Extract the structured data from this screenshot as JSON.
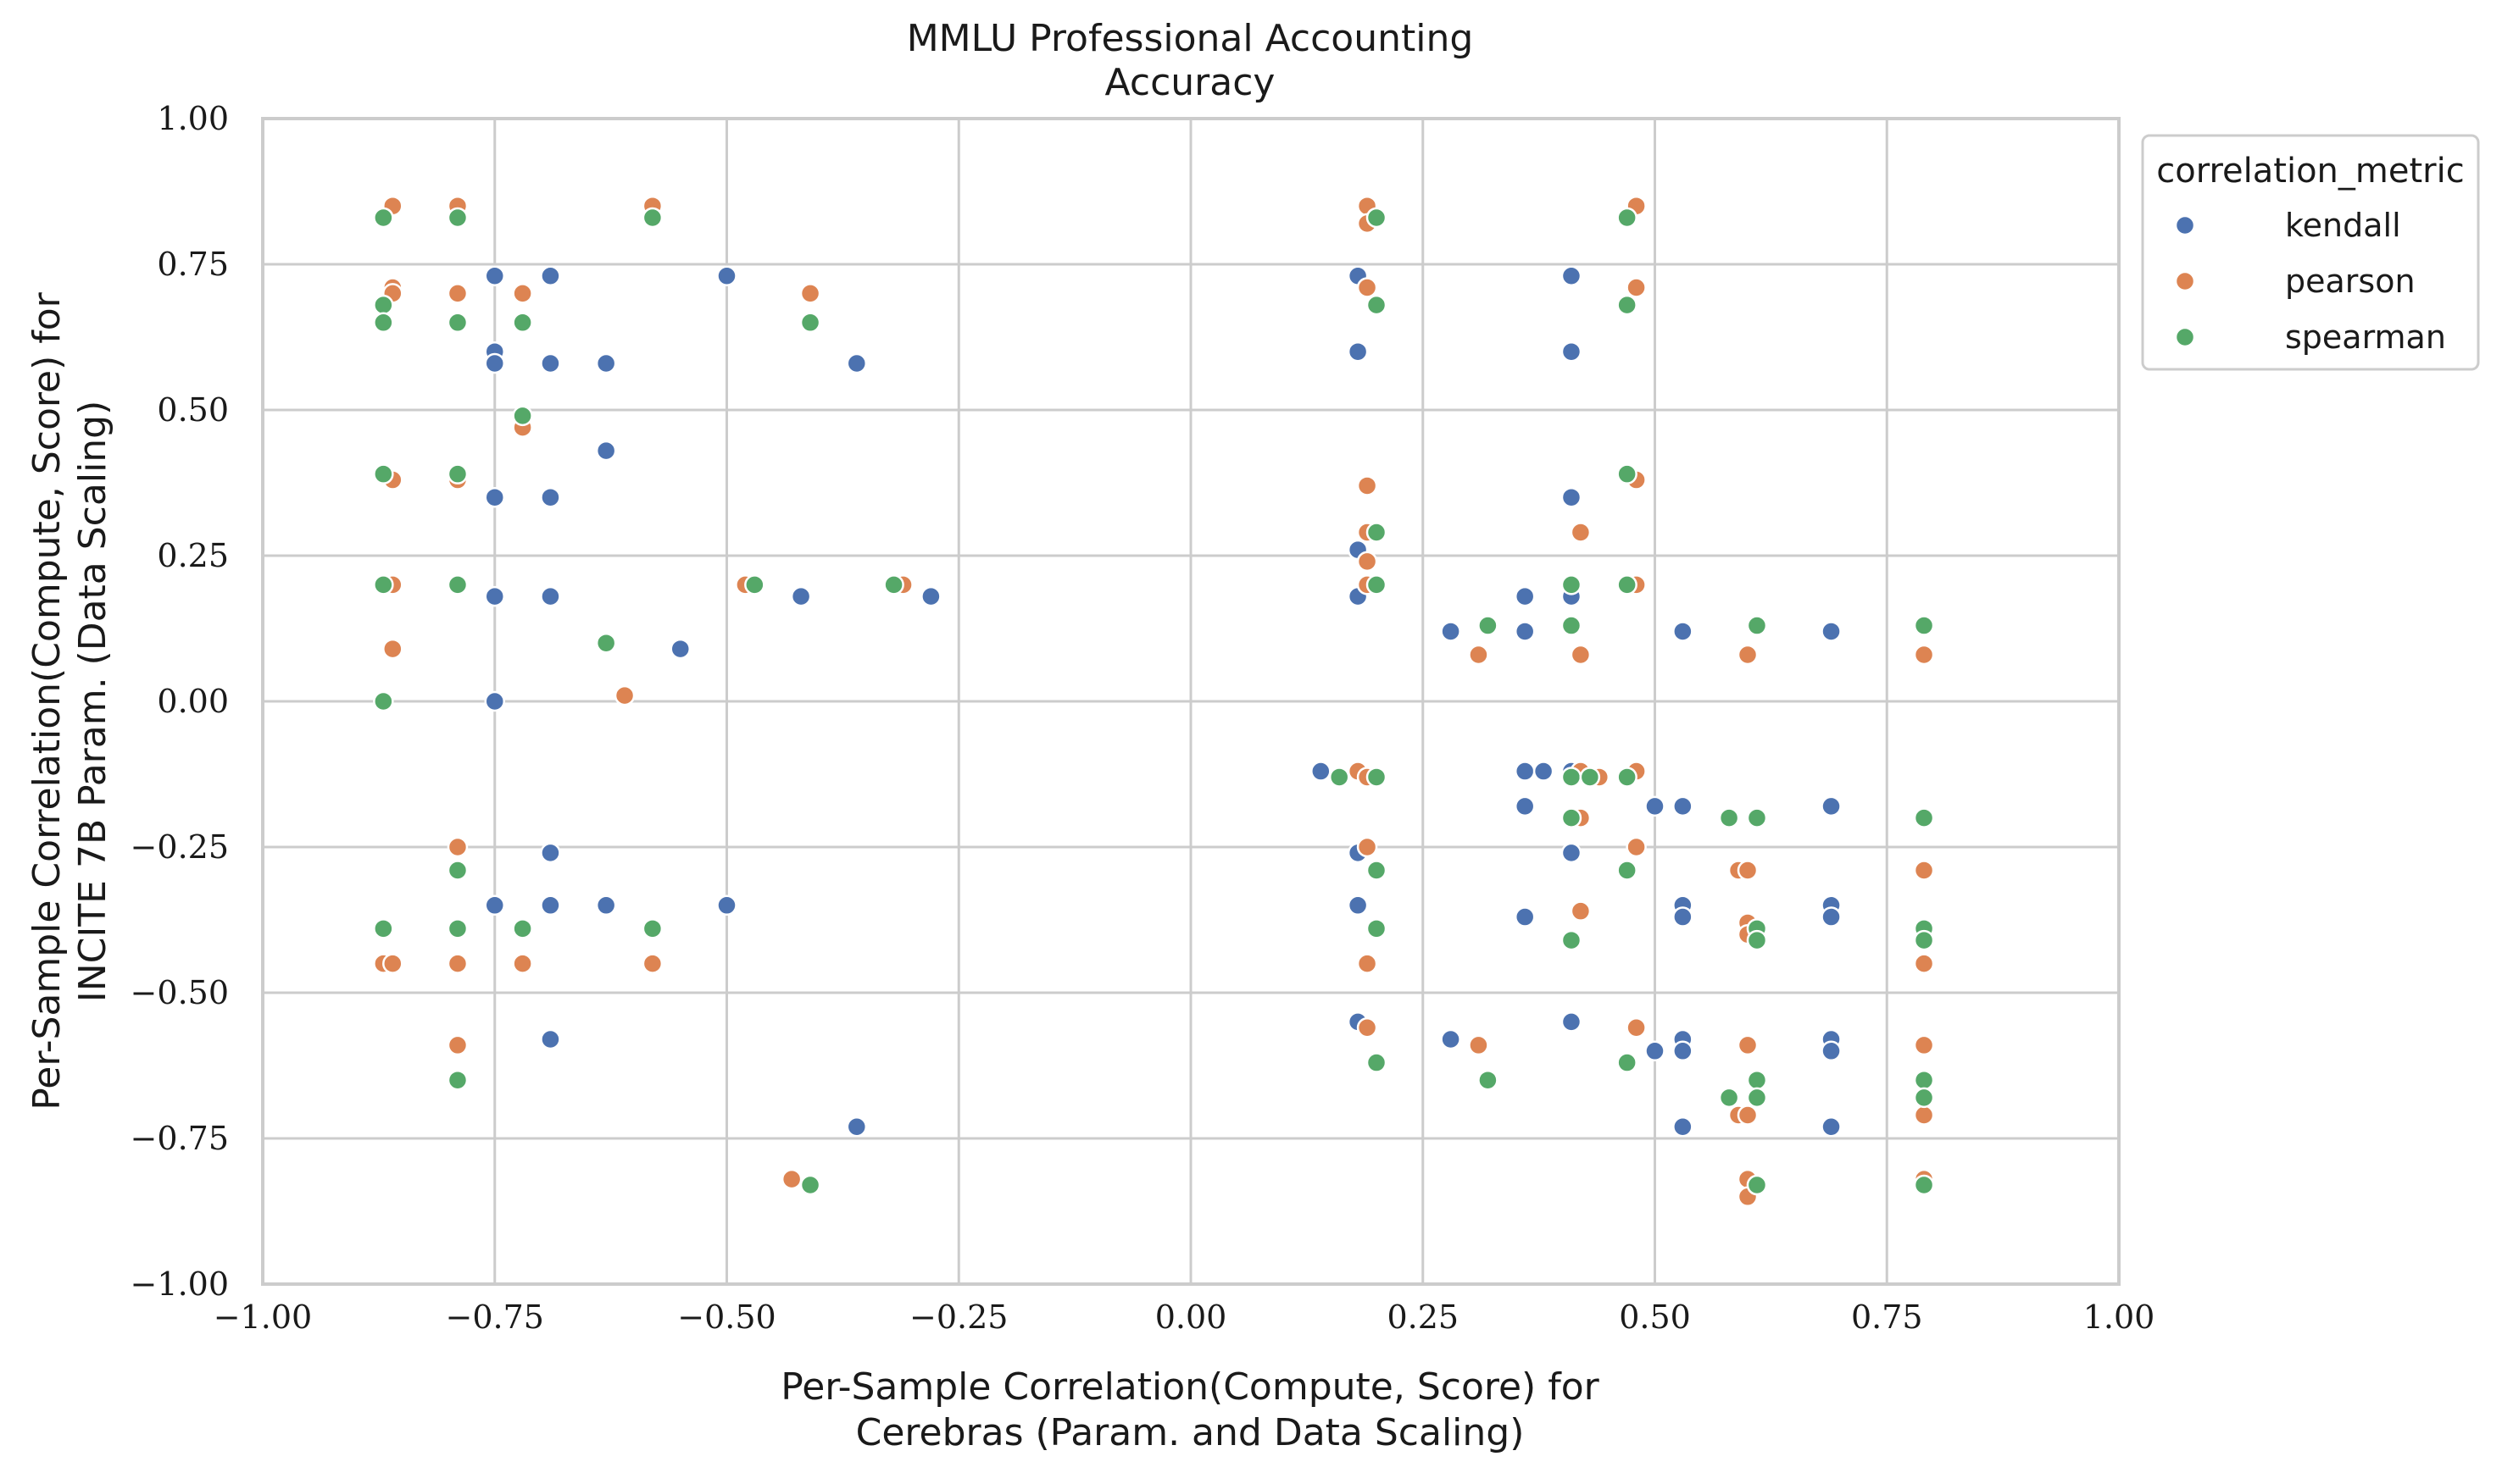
{
  "chart_data": {
    "type": "scatter",
    "title_lines": [
      "MMLU Professional Accounting",
      "Accuracy"
    ],
    "xlabel_lines": [
      "Per-Sample Correlation(Compute, Score) for",
      "Cerebras (Param. and Data Scaling)"
    ],
    "ylabel_lines": [
      "Per-Sample Correlation(Compute, Score) for",
      "INCITE 7B Param. (Data Scaling)"
    ],
    "xlim": [
      -1.0,
      1.0
    ],
    "ylim": [
      -1.0,
      1.0
    ],
    "xticks": [
      -1.0,
      -0.75,
      -0.5,
      -0.25,
      0.0,
      0.25,
      0.5,
      0.75,
      1.0
    ],
    "yticks": [
      -1.0,
      -0.75,
      -0.5,
      -0.25,
      0.0,
      0.25,
      0.5,
      0.75,
      1.0
    ],
    "xtick_labels": [
      "−1.00",
      "−0.75",
      "−0.50",
      "−0.25",
      "0.00",
      "0.25",
      "0.50",
      "0.75",
      "1.00"
    ],
    "ytick_labels": [
      "−1.00",
      "−0.75",
      "−0.50",
      "−0.25",
      "0.00",
      "0.25",
      "0.50",
      "0.75",
      "1.00"
    ],
    "grid": true,
    "legend": {
      "title": "correlation_metric",
      "position": "outside-top-right"
    },
    "series": [
      {
        "name": "kendall",
        "color": "#4c72b0",
        "points": [
          [
            -0.75,
            0.73
          ],
          [
            -0.69,
            0.73
          ],
          [
            -0.5,
            0.73
          ],
          [
            -0.75,
            0.6
          ],
          [
            -0.75,
            0.58
          ],
          [
            -0.69,
            0.58
          ],
          [
            -0.63,
            0.58
          ],
          [
            -0.36,
            0.58
          ],
          [
            -0.63,
            0.43
          ],
          [
            -0.75,
            0.35
          ],
          [
            -0.69,
            0.35
          ],
          [
            -0.75,
            0.18
          ],
          [
            -0.69,
            0.18
          ],
          [
            -0.42,
            0.18
          ],
          [
            -0.28,
            0.18
          ],
          [
            -0.55,
            0.09
          ],
          [
            -0.75,
            0.0
          ],
          [
            -0.69,
            -0.26
          ],
          [
            -0.75,
            -0.35
          ],
          [
            -0.69,
            -0.35
          ],
          [
            -0.63,
            -0.35
          ],
          [
            -0.5,
            -0.35
          ],
          [
            -0.69,
            -0.58
          ],
          [
            -0.36,
            -0.73
          ],
          [
            0.18,
            0.73
          ],
          [
            0.41,
            0.73
          ],
          [
            0.18,
            0.6
          ],
          [
            0.41,
            0.6
          ],
          [
            0.41,
            0.35
          ],
          [
            0.18,
            0.26
          ],
          [
            0.18,
            0.18
          ],
          [
            0.36,
            0.18
          ],
          [
            0.41,
            0.18
          ],
          [
            0.28,
            0.12
          ],
          [
            0.36,
            0.12
          ],
          [
            0.53,
            0.12
          ],
          [
            0.69,
            0.12
          ],
          [
            0.14,
            -0.12
          ],
          [
            0.18,
            -0.12
          ],
          [
            0.36,
            -0.12
          ],
          [
            0.38,
            -0.12
          ],
          [
            0.41,
            -0.12
          ],
          [
            0.36,
            -0.18
          ],
          [
            0.5,
            -0.18
          ],
          [
            0.53,
            -0.18
          ],
          [
            0.69,
            -0.18
          ],
          [
            0.18,
            -0.26
          ],
          [
            0.41,
            -0.26
          ],
          [
            0.18,
            -0.35
          ],
          [
            0.53,
            -0.35
          ],
          [
            0.69,
            -0.35
          ],
          [
            0.36,
            -0.37
          ],
          [
            0.53,
            -0.37
          ],
          [
            0.69,
            -0.37
          ],
          [
            0.18,
            -0.55
          ],
          [
            0.41,
            -0.55
          ],
          [
            0.28,
            -0.58
          ],
          [
            0.53,
            -0.58
          ],
          [
            0.69,
            -0.58
          ],
          [
            0.5,
            -0.6
          ],
          [
            0.53,
            -0.6
          ],
          [
            0.69,
            -0.6
          ],
          [
            0.53,
            -0.73
          ],
          [
            0.69,
            -0.73
          ]
        ]
      },
      {
        "name": "pearson",
        "color": "#dd8452",
        "points": [
          [
            -0.86,
            0.85
          ],
          [
            -0.79,
            0.85
          ],
          [
            -0.58,
            0.85
          ],
          [
            -0.86,
            0.71
          ],
          [
            -0.86,
            0.7
          ],
          [
            -0.79,
            0.7
          ],
          [
            -0.72,
            0.7
          ],
          [
            -0.41,
            0.7
          ],
          [
            -0.72,
            0.47
          ],
          [
            -0.86,
            0.38
          ],
          [
            -0.79,
            0.38
          ],
          [
            -0.86,
            0.2
          ],
          [
            -0.79,
            0.2
          ],
          [
            -0.48,
            0.2
          ],
          [
            -0.31,
            0.2
          ],
          [
            -0.86,
            0.09
          ],
          [
            -0.61,
            0.01
          ],
          [
            -0.79,
            -0.25
          ],
          [
            -0.87,
            -0.45
          ],
          [
            -0.86,
            -0.45
          ],
          [
            -0.79,
            -0.45
          ],
          [
            -0.72,
            -0.45
          ],
          [
            -0.58,
            -0.45
          ],
          [
            -0.79,
            -0.59
          ],
          [
            -0.43,
            -0.82
          ],
          [
            0.19,
            0.85
          ],
          [
            0.48,
            0.85
          ],
          [
            0.19,
            0.82
          ],
          [
            0.19,
            0.71
          ],
          [
            0.48,
            0.71
          ],
          [
            0.19,
            0.37
          ],
          [
            0.48,
            0.38
          ],
          [
            0.19,
            0.29
          ],
          [
            0.42,
            0.29
          ],
          [
            0.19,
            0.24
          ],
          [
            0.19,
            0.2
          ],
          [
            0.48,
            0.2
          ],
          [
            0.31,
            0.08
          ],
          [
            0.42,
            0.08
          ],
          [
            0.6,
            0.08
          ],
          [
            0.79,
            0.08
          ],
          [
            0.18,
            -0.12
          ],
          [
            0.19,
            -0.13
          ],
          [
            0.42,
            -0.12
          ],
          [
            0.44,
            -0.13
          ],
          [
            0.48,
            -0.12
          ],
          [
            0.42,
            -0.2
          ],
          [
            0.19,
            -0.25
          ],
          [
            0.48,
            -0.25
          ],
          [
            0.59,
            -0.29
          ],
          [
            0.6,
            -0.29
          ],
          [
            0.79,
            -0.29
          ],
          [
            0.42,
            -0.36
          ],
          [
            0.6,
            -0.38
          ],
          [
            0.6,
            -0.4
          ],
          [
            0.79,
            -0.45
          ],
          [
            0.19,
            -0.45
          ],
          [
            0.19,
            -0.56
          ],
          [
            0.48,
            -0.56
          ],
          [
            0.31,
            -0.59
          ],
          [
            0.6,
            -0.59
          ],
          [
            0.79,
            -0.59
          ],
          [
            0.59,
            -0.71
          ],
          [
            0.6,
            -0.71
          ],
          [
            0.79,
            -0.71
          ],
          [
            0.6,
            -0.82
          ],
          [
            0.79,
            -0.82
          ],
          [
            0.6,
            -0.85
          ]
        ]
      },
      {
        "name": "spearman",
        "color": "#55a868",
        "points": [
          [
            -0.87,
            0.83
          ],
          [
            -0.79,
            0.83
          ],
          [
            -0.58,
            0.83
          ],
          [
            -0.87,
            0.68
          ],
          [
            -0.87,
            0.65
          ],
          [
            -0.79,
            0.65
          ],
          [
            -0.72,
            0.65
          ],
          [
            -0.41,
            0.65
          ],
          [
            -0.72,
            0.49
          ],
          [
            -0.87,
            0.39
          ],
          [
            -0.79,
            0.39
          ],
          [
            -0.87,
            0.2
          ],
          [
            -0.79,
            0.2
          ],
          [
            -0.47,
            0.2
          ],
          [
            -0.32,
            0.2
          ],
          [
            -0.63,
            0.1
          ],
          [
            -0.87,
            0.0
          ],
          [
            -0.79,
            -0.29
          ],
          [
            -0.87,
            -0.39
          ],
          [
            -0.79,
            -0.39
          ],
          [
            -0.72,
            -0.39
          ],
          [
            -0.58,
            -0.39
          ],
          [
            -0.79,
            -0.65
          ],
          [
            -0.41,
            -0.83
          ],
          [
            0.2,
            0.83
          ],
          [
            0.47,
            0.83
          ],
          [
            0.2,
            0.68
          ],
          [
            0.47,
            0.68
          ],
          [
            0.47,
            0.39
          ],
          [
            0.2,
            0.29
          ],
          [
            0.2,
            0.2
          ],
          [
            0.41,
            0.2
          ],
          [
            0.47,
            0.2
          ],
          [
            0.32,
            0.13
          ],
          [
            0.41,
            0.13
          ],
          [
            0.61,
            0.13
          ],
          [
            0.79,
            0.13
          ],
          [
            0.16,
            -0.13
          ],
          [
            0.2,
            -0.13
          ],
          [
            0.41,
            -0.13
          ],
          [
            0.43,
            -0.13
          ],
          [
            0.47,
            -0.13
          ],
          [
            0.41,
            -0.2
          ],
          [
            0.58,
            -0.2
          ],
          [
            0.61,
            -0.2
          ],
          [
            0.79,
            -0.2
          ],
          [
            0.2,
            -0.29
          ],
          [
            0.47,
            -0.29
          ],
          [
            0.2,
            -0.39
          ],
          [
            0.61,
            -0.39
          ],
          [
            0.79,
            -0.39
          ],
          [
            0.41,
            -0.41
          ],
          [
            0.61,
            -0.41
          ],
          [
            0.79,
            -0.41
          ],
          [
            0.2,
            -0.62
          ],
          [
            0.47,
            -0.62
          ],
          [
            0.32,
            -0.65
          ],
          [
            0.61,
            -0.65
          ],
          [
            0.79,
            -0.65
          ],
          [
            0.58,
            -0.68
          ],
          [
            0.61,
            -0.68
          ],
          [
            0.79,
            -0.68
          ],
          [
            0.61,
            -0.83
          ],
          [
            0.79,
            -0.83
          ]
        ]
      }
    ]
  }
}
